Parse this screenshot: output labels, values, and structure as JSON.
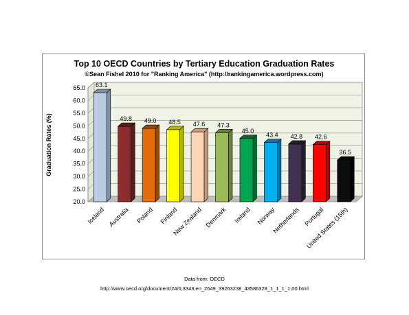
{
  "chart_data": {
    "type": "bar",
    "title": "Top 10 OECD Countries by Tertiary Education Graduation Rates",
    "subtitle": "©Sean Fishel 2010 for \"Ranking America\" (http://rankingamerica.wordpress.com)",
    "ylabel": "Graduation Rates (%)",
    "xlabel": "",
    "ylim": [
      20.0,
      65.0
    ],
    "yticks": [
      "20.0",
      "25.0",
      "30.0",
      "35.0",
      "40.0",
      "45.0",
      "50.0",
      "55.0",
      "60.0",
      "65.0"
    ],
    "grid": true,
    "categories": [
      "Iceland",
      "Australia",
      "Poland",
      "Finland",
      "New Zealand",
      "Denmark",
      "Ireland",
      "Norway",
      "Netherlands",
      "Portugal",
      "United States (15th)"
    ],
    "values": [
      63.1,
      49.8,
      49.0,
      48.5,
      47.6,
      47.3,
      45.0,
      43.4,
      42.8,
      42.6,
      36.5
    ],
    "value_labels": [
      "63.1",
      "49.8",
      "49.0",
      "48.5",
      "47.6",
      "47.3",
      "45.0",
      "43.4",
      "42.8",
      "42.6",
      "36.5"
    ],
    "colors": [
      "#b8cce4",
      "#8b2d2d",
      "#e36c0a",
      "#ffff00",
      "#fbd5b5",
      "#9bbb59",
      "#00a651",
      "#00b0f0",
      "#403151",
      "#ff0000",
      "#0d0d0d"
    ],
    "side_colors": [
      "#7f8fa3",
      "#5a1c1c",
      "#9c4a06",
      "#b3b300",
      "#c49a7a",
      "#6b8239",
      "#006b33",
      "#0077a5",
      "#261d31",
      "#b30000",
      "#000000"
    ]
  },
  "source": {
    "line1": "Data from: OECD",
    "line2": "http://www.oecd.org/document/24/0,3343,en_2649_39263238_43586328_1_1_1_1,00.html"
  }
}
